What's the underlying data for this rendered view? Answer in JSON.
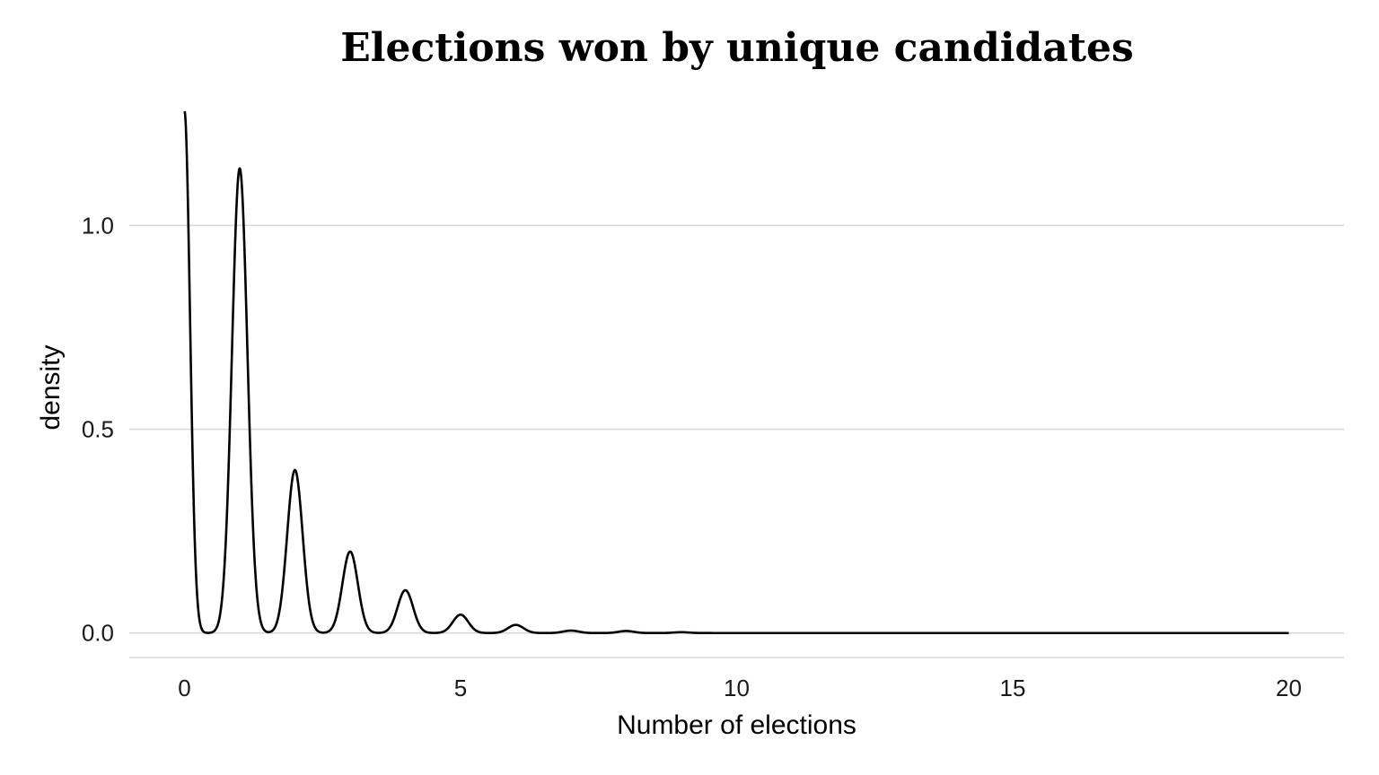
{
  "chart_data": {
    "type": "area",
    "title": "Elections won by unique candidates",
    "xlabel": "Number of elections",
    "ylabel": "density",
    "xlim": [
      -1,
      21
    ],
    "ylim": [
      -0.06,
      1.3
    ],
    "xticks": [
      0,
      5,
      10,
      15,
      20
    ],
    "xtick_labels": [
      "0",
      "5",
      "10",
      "15",
      "20"
    ],
    "yticks": [
      0.0,
      0.5,
      1.0
    ],
    "ytick_labels": [
      "0.0",
      "0.5",
      "1.0"
    ],
    "grid": "horizontal major",
    "legend": "none",
    "line_color": "#000000",
    "grid_color": "#d9d9d9",
    "series": [
      {
        "peaks": [
          {
            "x": 0,
            "y": 1.28
          },
          {
            "x": 1,
            "y": 1.14
          },
          {
            "x": 2,
            "y": 0.4
          },
          {
            "x": 3,
            "y": 0.2
          },
          {
            "x": 4,
            "y": 0.105
          },
          {
            "x": 5,
            "y": 0.045
          },
          {
            "x": 6,
            "y": 0.02
          },
          {
            "x": 7,
            "y": 0.006
          },
          {
            "x": 8,
            "y": 0.005
          },
          {
            "x": 9,
            "y": 0.002
          }
        ],
        "x_range": [
          0,
          20
        ]
      }
    ]
  }
}
